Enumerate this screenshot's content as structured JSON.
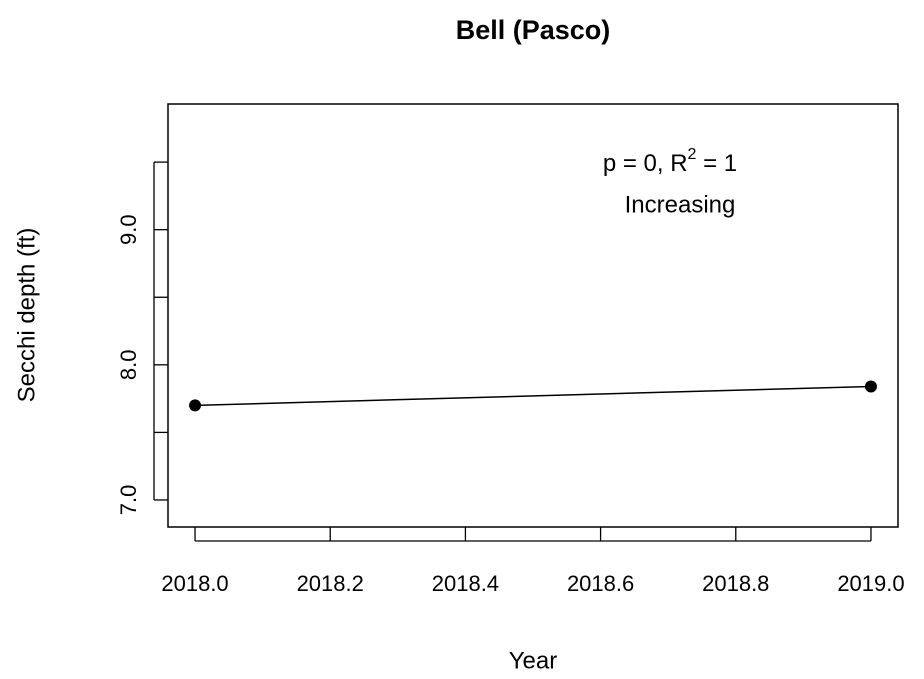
{
  "chart_data": {
    "type": "line",
    "title": "Bell (Pasco)",
    "x_label": "Year",
    "y_label": "Secchi depth (ft)",
    "annotation": {
      "parts": [
        "p = 0, R",
        "2",
        " = 1"
      ],
      "trend": "Increasing"
    },
    "x": [
      2018,
      2019
    ],
    "series": [
      {
        "name": "Secchi depth",
        "color": "#000000",
        "values": [
          7.7,
          7.84
        ]
      }
    ],
    "xlim": [
      2017.96,
      2019.04
    ],
    "ylim": [
      6.8,
      9.93
    ],
    "xticks": [
      {
        "value": 2018,
        "label": "2018.0"
      },
      {
        "value": 2018.2,
        "label": "2018.2"
      },
      {
        "value": 2018.4,
        "label": "2018.4"
      },
      {
        "value": 2018.6,
        "label": "2018.6"
      },
      {
        "value": 2018.8,
        "label": "2018.8"
      },
      {
        "value": 2019,
        "label": "2019.0"
      }
    ],
    "yticks": [
      {
        "value": 7,
        "label": "7.0"
      },
      {
        "value": 7.5,
        "label": null
      },
      {
        "value": 8,
        "label": "8.0"
      },
      {
        "value": 8.5,
        "label": null
      },
      {
        "value": 9,
        "label": "9.0"
      },
      {
        "value": 9.5,
        "label": null
      }
    ],
    "grid": false
  }
}
